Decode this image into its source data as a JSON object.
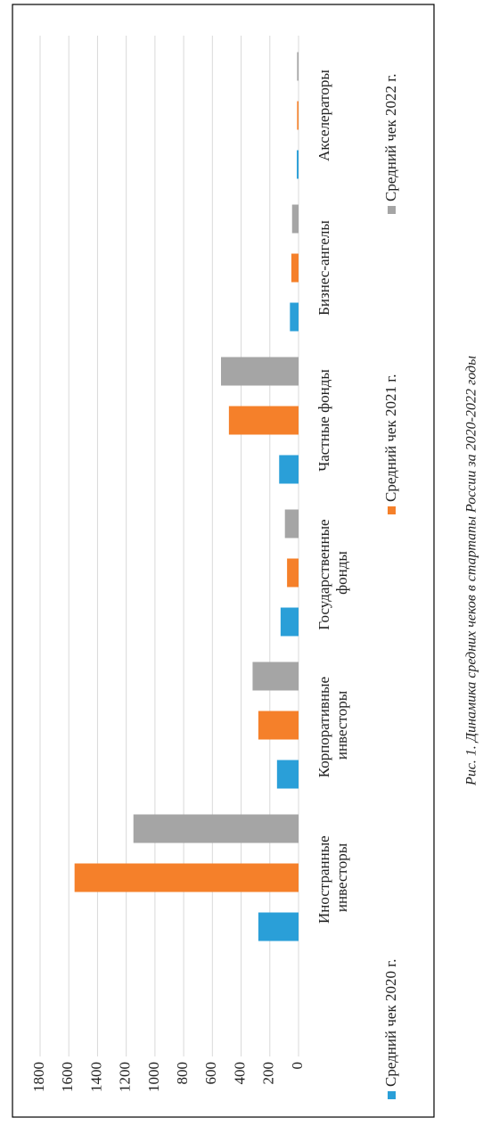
{
  "chart_data": {
    "type": "bar",
    "caption": "Рис. 1. Динамика средних чеков в стартапы России за 2020-2022 годы",
    "categories": [
      "Иностранные инвесторы",
      "Корпоративные инвесторы",
      "Государственные фонды",
      "Частные фонды",
      "Бизнес-ангелы",
      "Акселераторы"
    ],
    "series": [
      {
        "name": "Средний чек 2020 г.",
        "color": "#2a9fd8",
        "values": [
          280,
          150,
          125,
          135,
          60,
          12
        ]
      },
      {
        "name": "Средний чек 2021 г.",
        "color": "#f5802a",
        "values": [
          1560,
          280,
          80,
          485,
          50,
          10
        ]
      },
      {
        "name": "Средний чек 2022 г.",
        "color": "#a5a5a5",
        "values": [
          1150,
          320,
          95,
          540,
          45,
          10
        ]
      }
    ],
    "ylim": [
      0,
      1800
    ],
    "yticks": [
      0,
      200,
      400,
      600,
      800,
      1000,
      1200,
      1400,
      1600,
      1800
    ],
    "grid": true
  }
}
